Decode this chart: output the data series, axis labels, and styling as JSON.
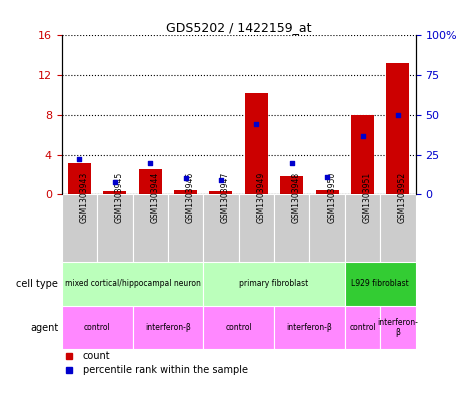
{
  "title": "GDS5202 / 1422159_at",
  "samples": [
    "GSM1303943",
    "GSM1303945",
    "GSM1303944",
    "GSM1303946",
    "GSM1303947",
    "GSM1303949",
    "GSM1303948",
    "GSM1303950",
    "GSM1303951",
    "GSM1303952"
  ],
  "counts": [
    3.2,
    0.3,
    2.6,
    0.4,
    0.35,
    10.2,
    1.9,
    0.45,
    8.0,
    13.2
  ],
  "percentile_ranks": [
    22,
    8,
    20,
    10,
    9,
    44,
    20,
    11,
    37,
    50
  ],
  "ylim_left": [
    0,
    16
  ],
  "ylim_right": [
    0,
    100
  ],
  "yticks_left": [
    0,
    4,
    8,
    12,
    16
  ],
  "yticks_right": [
    0,
    25,
    50,
    75,
    100
  ],
  "bar_color": "#cc0000",
  "percentile_color": "#0000cc",
  "cell_type_groups": [
    {
      "label": "mixed cortical/hippocampal neuron",
      "start": 0,
      "end": 3,
      "color": "#bbffbb"
    },
    {
      "label": "primary fibroblast",
      "start": 4,
      "end": 7,
      "color": "#bbffbb"
    },
    {
      "label": "L929 fibroblast",
      "start": 8,
      "end": 9,
      "color": "#33cc33"
    }
  ],
  "agent_groups": [
    {
      "label": "control",
      "start": 0,
      "end": 1,
      "color": "#ff88ff"
    },
    {
      "label": "interferon-β",
      "start": 2,
      "end": 3,
      "color": "#ff88ff"
    },
    {
      "label": "control",
      "start": 4,
      "end": 5,
      "color": "#ff88ff"
    },
    {
      "label": "interferon-β",
      "start": 6,
      "end": 7,
      "color": "#ff88ff"
    },
    {
      "label": "control",
      "start": 8,
      "end": 8,
      "color": "#ff88ff"
    },
    {
      "label": "interferon-\nβ",
      "start": 9,
      "end": 9,
      "color": "#ff88ff"
    }
  ],
  "left_axis_color": "#cc0000",
  "right_axis_color": "#0000cc",
  "xtick_bg_color": "#cccccc",
  "cell_type_light_color": "#bbffbb",
  "cell_type_dark_color": "#33cc33",
  "agent_color": "#ff88ff",
  "legend_count_color": "#cc0000",
  "legend_pct_color": "#0000cc"
}
